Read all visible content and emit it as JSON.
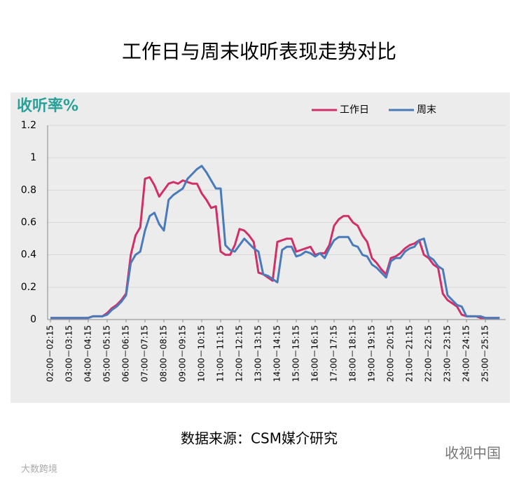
{
  "chart_data": {
    "type": "line",
    "title": "工作日与周末收听表现走势对比",
    "y_label": "收听率%",
    "source": "数据来源：CSM媒介研究",
    "watermarks": [
      "收视中国",
      "大数跨境"
    ],
    "categories": [
      "02:00－02:15",
      null,
      null,
      null,
      "03:00－03:15",
      null,
      null,
      null,
      "04:00－04:15",
      null,
      null,
      null,
      "05:00－05:15",
      null,
      null,
      null,
      "06:00－06:15",
      null,
      null,
      null,
      "07:00－07:15",
      null,
      null,
      null,
      "08:00－08:15",
      null,
      null,
      null,
      "09:00－09:15",
      null,
      null,
      null,
      "10:00－10:15",
      null,
      null,
      null,
      "11:00－11:15",
      null,
      null,
      null,
      "12:00－12:15",
      null,
      null,
      null,
      "13:00－13:15",
      null,
      null,
      null,
      "14:00－14:15",
      null,
      null,
      null,
      "15:00－15:15",
      null,
      null,
      null,
      "16:00－16:15",
      null,
      null,
      null,
      "17:00－17:15",
      null,
      null,
      null,
      "18:00－18:15",
      null,
      null,
      null,
      "19:00－19:15",
      null,
      null,
      null,
      "20:00－20:15",
      null,
      null,
      null,
      "21:00－21:15",
      null,
      null,
      null,
      "22:00－22:15",
      null,
      null,
      null,
      "23:00－23:15",
      null,
      null,
      null,
      "24:00－24:15",
      null,
      null,
      null,
      "25:00－25:15",
      null,
      null,
      null
    ],
    "series": [
      {
        "name": "工作日",
        "color": "#d0306a",
        "values": [
          0.01,
          0.01,
          0.01,
          0.01,
          0.01,
          0.01,
          0.01,
          0.01,
          0.01,
          0.02,
          0.02,
          0.02,
          0.04,
          0.07,
          0.09,
          0.12,
          0.16,
          0.4,
          0.52,
          0.57,
          0.87,
          0.88,
          0.83,
          0.76,
          0.8,
          0.84,
          0.85,
          0.84,
          0.86,
          0.85,
          0.84,
          0.84,
          0.78,
          0.74,
          0.69,
          0.7,
          0.42,
          0.4,
          0.4,
          0.46,
          0.56,
          0.55,
          0.52,
          0.48,
          0.29,
          0.28,
          0.26,
          0.24,
          0.48,
          0.49,
          0.5,
          0.5,
          0.42,
          0.43,
          0.44,
          0.45,
          0.4,
          0.41,
          0.41,
          0.46,
          0.58,
          0.62,
          0.64,
          0.64,
          0.6,
          0.58,
          0.52,
          0.48,
          0.38,
          0.35,
          0.31,
          0.28,
          0.38,
          0.39,
          0.41,
          0.44,
          0.46,
          0.47,
          0.49,
          0.4,
          0.38,
          0.34,
          0.32,
          0.16,
          0.12,
          0.1,
          0.08,
          0.03,
          0.02,
          0.02,
          0.02,
          0.01,
          0.01,
          0.01,
          0.01,
          0.01
        ]
      },
      {
        "name": "周末",
        "color": "#4a7ab8",
        "values": [
          0.01,
          0.01,
          0.01,
          0.01,
          0.01,
          0.01,
          0.01,
          0.01,
          0.01,
          0.02,
          0.02,
          0.02,
          0.03,
          0.06,
          0.08,
          0.11,
          0.15,
          0.35,
          0.4,
          0.42,
          0.55,
          0.64,
          0.66,
          0.59,
          0.55,
          0.74,
          0.77,
          0.79,
          0.81,
          0.87,
          0.9,
          0.93,
          0.95,
          0.91,
          0.86,
          0.81,
          0.81,
          0.46,
          0.43,
          0.42,
          0.46,
          0.5,
          0.47,
          0.44,
          0.42,
          0.28,
          0.27,
          0.25,
          0.23,
          0.43,
          0.45,
          0.45,
          0.39,
          0.4,
          0.42,
          0.41,
          0.39,
          0.41,
          0.38,
          0.44,
          0.49,
          0.51,
          0.51,
          0.51,
          0.46,
          0.45,
          0.4,
          0.39,
          0.34,
          0.32,
          0.29,
          0.26,
          0.36,
          0.38,
          0.38,
          0.42,
          0.44,
          0.45,
          0.49,
          0.5,
          0.39,
          0.37,
          0.33,
          0.31,
          0.15,
          0.12,
          0.09,
          0.08,
          0.02,
          0.02,
          0.02,
          0.02,
          0.01,
          0.01,
          0.01,
          0.01
        ]
      }
    ],
    "ylim": [
      0,
      1.2
    ],
    "yticks": [
      0,
      0.2,
      0.4,
      0.6,
      0.8,
      1,
      1.2
    ],
    "grid": true,
    "legend": "top-right"
  }
}
